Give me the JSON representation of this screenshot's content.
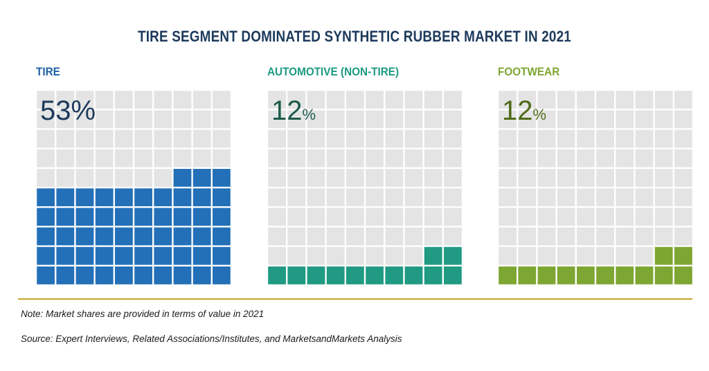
{
  "title": "TIRE SEGMENT DOMINATED SYNTHETIC RUBBER MARKET IN 2021",
  "chart_data": {
    "type": "waffle",
    "grid_rows": 10,
    "grid_cols": 10,
    "empty_color": "#e4e4e4",
    "segments": [
      {
        "label": "TIRE",
        "value": 53,
        "value_text": "53",
        "unit": "%",
        "color": "#2370b8",
        "text_color": "#1f5fa6",
        "pct_color": "#1d3a5c"
      },
      {
        "label": "AUTOMOTIVE (NON-TIRE)",
        "value": 12,
        "value_text": "12",
        "unit": "%",
        "color": "#209a83",
        "text_color": "#1e9a82",
        "pct_color": "#1d5a4c"
      },
      {
        "label": "FOOTWEAR",
        "value": 12,
        "value_text": "12",
        "unit": "%",
        "color": "#7ea632",
        "text_color": "#7ea632",
        "pct_color": "#4f6b18"
      }
    ]
  },
  "note": "Note: Market shares are provided in terms of value in 2021",
  "source": "Source: Expert Interviews, Related Associations/Institutes, and MarketsandMarkets Analysis"
}
